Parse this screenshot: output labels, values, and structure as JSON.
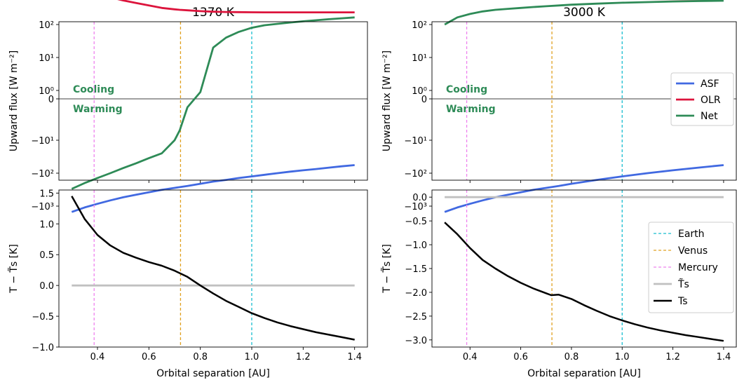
{
  "colors": {
    "asf": "#4169e1",
    "olr": "#dc143c",
    "net": "#2e8b57",
    "earth": "#17becf",
    "venus": "#e0a020",
    "mercury": "#ee82ee",
    "ts_tilde": "#c0c0c0",
    "ts": "#000000"
  },
  "chart_data": [
    {
      "type": "line",
      "title": "1370 K",
      "xlabel": "",
      "ylabel": "Upward flux [W m⁻²]",
      "yscale": "symlog",
      "xlim": [
        0.25,
        1.45
      ],
      "ytick_labels": [
        "10³",
        "10²",
        "10¹",
        "10⁰",
        "0",
        "−10¹",
        "−10²",
        "−10³"
      ],
      "annotations": [
        "Cooling",
        "Warming"
      ],
      "x": [
        0.3,
        0.35,
        0.4,
        0.45,
        0.5,
        0.55,
        0.6,
        0.65,
        0.7,
        0.72,
        0.75,
        0.8,
        0.85,
        0.9,
        0.95,
        1.0,
        1.05,
        1.1,
        1.15,
        1.2,
        1.25,
        1.3,
        1.35,
        1.4
      ],
      "series": [
        {
          "name": "ASF",
          "values": [
            -1500,
            -1100,
            -850,
            -670,
            -540,
            -450,
            -380,
            -320,
            -280,
            -265,
            -245,
            -210,
            -180,
            -160,
            -140,
            -125,
            -112,
            -100,
            -90,
            -82,
            -75,
            -68,
            -62,
            -57
          ]
        },
        {
          "name": "OLR",
          "values": [
            1500,
            1100,
            850,
            670,
            540,
            450,
            380,
            320,
            290,
            280,
            270,
            255,
            245,
            240,
            238,
            236,
            235,
            234,
            234,
            234,
            234,
            234,
            234,
            234
          ]
        },
        {
          "name": "Net",
          "values": [
            -300,
            -200,
            -140,
            -100,
            -70,
            -50,
            -35,
            -25,
            -10,
            -5,
            -1,
            0.8,
            20,
            40,
            60,
            80,
            95,
            105,
            115,
            125,
            135,
            145,
            155,
            165
          ]
        }
      ],
      "reference_lines": [
        {
          "name": "Mercury",
          "x": 0.387
        },
        {
          "name": "Venus",
          "x": 0.723
        },
        {
          "name": "Earth",
          "x": 1.0
        }
      ]
    },
    {
      "type": "line",
      "title": "3000 K",
      "xlabel": "",
      "ylabel": "Upward flux [W m⁻²]",
      "yscale": "symlog",
      "xlim": [
        0.25,
        1.45
      ],
      "ytick_labels": [
        "10³",
        "10²",
        "10¹",
        "10⁰",
        "0",
        "−10¹",
        "−10²",
        "−10³"
      ],
      "annotations": [
        "Cooling",
        "Warming"
      ],
      "legend": [
        "ASF",
        "OLR",
        "Net"
      ],
      "legend_placement": "right",
      "x": [
        0.3,
        0.35,
        0.4,
        0.45,
        0.5,
        0.55,
        0.6,
        0.65,
        0.7,
        0.75,
        0.8,
        0.9,
        1.0,
        1.1,
        1.2,
        1.3,
        1.4
      ],
      "series": [
        {
          "name": "ASF",
          "values": [
            -1500,
            -1100,
            -850,
            -670,
            -540,
            -450,
            -380,
            -320,
            -280,
            -245,
            -210,
            -160,
            -125,
            -100,
            -82,
            -68,
            -57
          ]
        },
        {
          "name": "OLR",
          "values": [
            1900,
            1400,
            1150,
            980,
            870,
            790,
            730,
            690,
            660,
            640,
            625,
            610,
            600,
            595,
            592,
            590,
            590
          ]
        },
        {
          "name": "Net",
          "values": [
            100,
            165,
            210,
            250,
            280,
            300,
            320,
            340,
            360,
            380,
            400,
            430,
            460,
            480,
            500,
            515,
            530
          ]
        }
      ],
      "reference_lines": [
        {
          "name": "Mercury",
          "x": 0.387
        },
        {
          "name": "Venus",
          "x": 0.723
        },
        {
          "name": "Earth",
          "x": 1.0
        }
      ]
    },
    {
      "type": "line",
      "title": "",
      "xlabel": "Orbital separation [AU]",
      "ylabel": "T − T̃s [K]",
      "xlim": [
        0.25,
        1.45
      ],
      "ylim": [
        -1.0,
        1.55
      ],
      "xticks": [
        0.4,
        0.6,
        0.8,
        1.0,
        1.2,
        1.4
      ],
      "yticks": [
        -1.0,
        -0.5,
        0.0,
        0.5,
        1.0,
        1.5
      ],
      "x": [
        0.3,
        0.35,
        0.4,
        0.45,
        0.5,
        0.55,
        0.6,
        0.65,
        0.7,
        0.75,
        0.8,
        0.85,
        0.9,
        0.95,
        1.0,
        1.05,
        1.1,
        1.15,
        1.2,
        1.25,
        1.3,
        1.35,
        1.4
      ],
      "series": [
        {
          "name": "T̃s",
          "values": [
            0,
            0,
            0,
            0,
            0,
            0,
            0,
            0,
            0,
            0,
            0,
            0,
            0,
            0,
            0,
            0,
            0,
            0,
            0,
            0,
            0,
            0,
            0
          ]
        },
        {
          "name": "Ts",
          "values": [
            1.45,
            1.08,
            0.82,
            0.65,
            0.53,
            0.45,
            0.38,
            0.32,
            0.24,
            0.14,
            0.0,
            -0.13,
            -0.25,
            -0.35,
            -0.45,
            -0.53,
            -0.6,
            -0.66,
            -0.71,
            -0.76,
            -0.8,
            -0.84,
            -0.88
          ]
        }
      ],
      "reference_lines": [
        {
          "name": "Mercury",
          "x": 0.387
        },
        {
          "name": "Venus",
          "x": 0.723
        },
        {
          "name": "Earth",
          "x": 1.0
        }
      ]
    },
    {
      "type": "line",
      "title": "",
      "xlabel": "Orbital separation [AU]",
      "ylabel": "T − T̃s [K]",
      "xlim": [
        0.25,
        1.45
      ],
      "ylim": [
        -3.15,
        0.15
      ],
      "xticks": [
        0.4,
        0.6,
        0.8,
        1.0,
        1.2,
        1.4
      ],
      "yticks": [
        0.0,
        -0.5,
        -1.0,
        -1.5,
        -2.0,
        -2.5,
        -3.0
      ],
      "legend": [
        "Earth",
        "Venus",
        "Mercury",
        "T̃s",
        "Ts"
      ],
      "legend_placement": "right",
      "x": [
        0.3,
        0.35,
        0.4,
        0.45,
        0.5,
        0.55,
        0.6,
        0.65,
        0.7,
        0.72,
        0.75,
        0.8,
        0.85,
        0.9,
        0.95,
        1.0,
        1.05,
        1.1,
        1.15,
        1.2,
        1.25,
        1.3,
        1.35,
        1.4
      ],
      "series": [
        {
          "name": "T̃s",
          "values": [
            0,
            0,
            0,
            0,
            0,
            0,
            0,
            0,
            0,
            0,
            0,
            0,
            0,
            0,
            0,
            0,
            0,
            0,
            0,
            0,
            0,
            0,
            0,
            0
          ]
        },
        {
          "name": "Ts",
          "values": [
            -0.53,
            -0.78,
            -1.07,
            -1.32,
            -1.5,
            -1.66,
            -1.8,
            -1.92,
            -2.02,
            -2.06,
            -2.05,
            -2.14,
            -2.27,
            -2.39,
            -2.5,
            -2.59,
            -2.67,
            -2.74,
            -2.8,
            -2.85,
            -2.9,
            -2.94,
            -2.98,
            -3.02
          ]
        }
      ],
      "reference_lines": [
        {
          "name": "Mercury",
          "x": 0.387
        },
        {
          "name": "Venus",
          "x": 0.723
        },
        {
          "name": "Earth",
          "x": 1.0
        }
      ]
    }
  ]
}
